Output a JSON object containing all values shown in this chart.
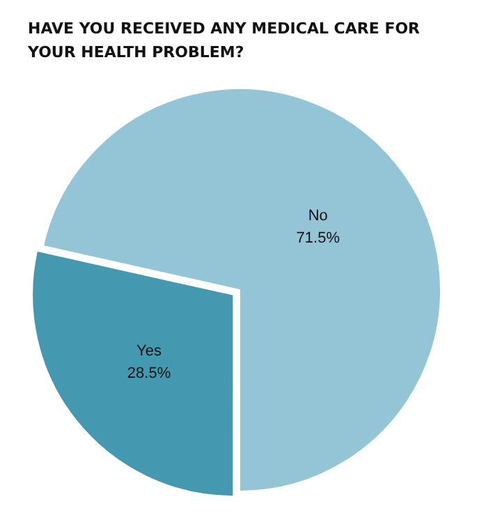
{
  "chart_data": {
    "type": "pie",
    "title": "HAVE YOU RECEIVED ANY MEDICAL CARE FOR YOUR HEALTH PROBLEM?",
    "categories": [
      "Yes",
      "No"
    ],
    "values": [
      28.5,
      71.5
    ],
    "colors": [
      "#4499b0",
      "#94c5d7"
    ],
    "value_labels": [
      "28.5%",
      "71.5%"
    ],
    "legend": false
  }
}
